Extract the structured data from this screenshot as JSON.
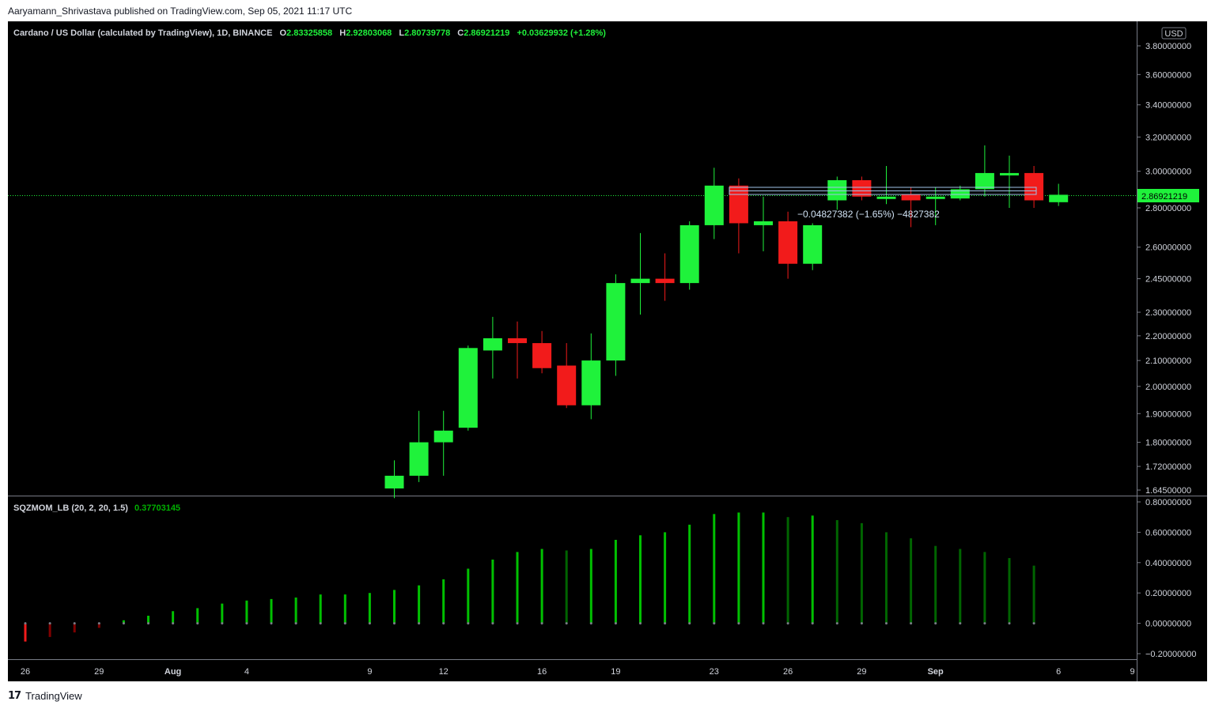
{
  "published_line": "Aaryamann_Shrivastava published on TradingView.com, Sep 05, 2021 11:17 UTC",
  "header": {
    "symbol": "Cardano / US Dollar (calculated by TradingView), 1D, BINANCE",
    "o_label": "O",
    "o": "2.83325858",
    "h_label": "H",
    "h": "2.92803068",
    "l_label": "L",
    "l": "2.80739778",
    "c_label": "C",
    "c": "2.86921219",
    "change": "+0.03629932 (+1.28%)"
  },
  "currency_label": "USD",
  "last_price_label": "2.86921219",
  "measure_label": "−0.04827382 (−1.65%) −4827382",
  "indicator": {
    "name": "SQZMOM_LB (20, 2, 20, 1.5)",
    "value": "0.37703145"
  },
  "footer": {
    "logo": "17",
    "brand": "TradingView"
  },
  "colors": {
    "up": "#1ff23b",
    "down": "#f21b1b",
    "background": "#000000",
    "hist_bright": "#00c000",
    "hist_dark": "#006400",
    "hist_maroon": "#800000"
  },
  "chart_data": [
    {
      "type": "candlestick",
      "title": "Cardano / US Dollar (calculated by TradingView), 1D, BINANCE",
      "y_scale": "log",
      "ylim": [
        1.645,
        3.95
      ],
      "y_ticks": [
        "3.80000000",
        "3.60000000",
        "3.40000000",
        "3.20000000",
        "3.00000000",
        "2.80000000",
        "2.60000000",
        "2.45000000",
        "2.30000000",
        "2.20000000",
        "2.10000000",
        "2.00000000",
        "1.90000000",
        "1.80000000",
        "1.72000000",
        "1.64500000"
      ],
      "x_ticks": [
        "26",
        "29",
        "Aug",
        "4",
        "9",
        "12",
        "16",
        "19",
        "23",
        "26",
        "29",
        "Sep",
        "6",
        "9"
      ],
      "candles": [
        {
          "date": "2021-08-10",
          "open": 1.65,
          "high": 1.74,
          "low": 1.62,
          "close": 1.69
        },
        {
          "date": "2021-08-11",
          "open": 1.69,
          "high": 1.91,
          "low": 1.67,
          "close": 1.8
        },
        {
          "date": "2021-08-12",
          "open": 1.8,
          "high": 1.91,
          "low": 1.69,
          "close": 1.84
        },
        {
          "date": "2021-08-13",
          "open": 1.85,
          "high": 2.16,
          "low": 1.84,
          "close": 2.15
        },
        {
          "date": "2021-08-14",
          "open": 2.14,
          "high": 2.28,
          "low": 2.03,
          "close": 2.19
        },
        {
          "date": "2021-08-15",
          "open": 2.19,
          "high": 2.26,
          "low": 2.03,
          "close": 2.17
        },
        {
          "date": "2021-08-16",
          "open": 2.17,
          "high": 2.22,
          "low": 2.05,
          "close": 2.07
        },
        {
          "date": "2021-08-17",
          "open": 2.08,
          "high": 2.17,
          "low": 1.92,
          "close": 1.93
        },
        {
          "date": "2021-08-18",
          "open": 1.93,
          "high": 2.21,
          "low": 1.88,
          "close": 2.1
        },
        {
          "date": "2021-08-19",
          "open": 2.1,
          "high": 2.47,
          "low": 2.04,
          "close": 2.43
        },
        {
          "date": "2021-08-20",
          "open": 2.43,
          "high": 2.67,
          "low": 2.29,
          "close": 2.45
        },
        {
          "date": "2021-08-21",
          "open": 2.45,
          "high": 2.57,
          "low": 2.35,
          "close": 2.43
        },
        {
          "date": "2021-08-22",
          "open": 2.43,
          "high": 2.73,
          "low": 2.4,
          "close": 2.71
        },
        {
          "date": "2021-08-23",
          "open": 2.71,
          "high": 3.02,
          "low": 2.64,
          "close": 2.92
        },
        {
          "date": "2021-08-24",
          "open": 2.92,
          "high": 2.96,
          "low": 2.57,
          "close": 2.72
        },
        {
          "date": "2021-08-25",
          "open": 2.71,
          "high": 2.86,
          "low": 2.58,
          "close": 2.73
        },
        {
          "date": "2021-08-26",
          "open": 2.73,
          "high": 2.78,
          "low": 2.45,
          "close": 2.52
        },
        {
          "date": "2021-08-27",
          "open": 2.52,
          "high": 2.72,
          "low": 2.49,
          "close": 2.71
        },
        {
          "date": "2021-08-28",
          "open": 2.95,
          "high": 2.97,
          "low": 2.79,
          "close": 2.84
        }
      ]
    },
    {
      "type": "bar",
      "title": "SQZMOM_LB (20, 2, 20, 1.5)",
      "ylim": [
        -0.2,
        0.8
      ],
      "y_ticks": [
        "0.80000000",
        "0.60000000",
        "0.40000000",
        "0.20000000",
        "0.00000000",
        "−0.20000000"
      ],
      "values": [
        -0.12,
        -0.09,
        -0.06,
        -0.03,
        0.02,
        0.05,
        0.08,
        0.1,
        0.13,
        0.15,
        0.16,
        0.17,
        0.19,
        0.19,
        0.2,
        0.22,
        0.25,
        0.29,
        0.36,
        0.42,
        0.47,
        0.49,
        0.48,
        0.49,
        0.55,
        0.58,
        0.6,
        0.65,
        0.72,
        0.73,
        0.73,
        0.7,
        0.71,
        0.68,
        0.66,
        0.6,
        0.56,
        0.51,
        0.49,
        0.47,
        0.43,
        0.38
      ]
    }
  ]
}
